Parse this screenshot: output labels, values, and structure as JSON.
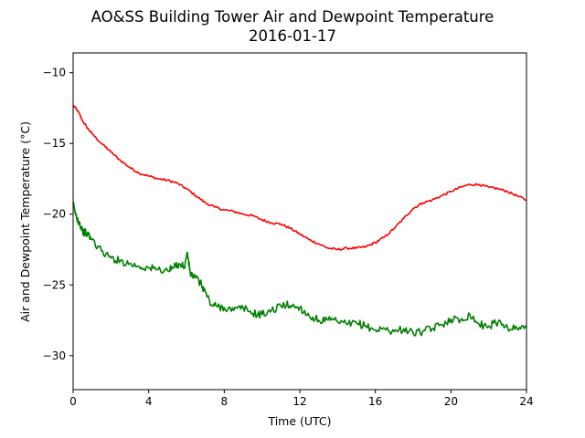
{
  "chart_data": {
    "type": "line",
    "title": "AO&SS Building Tower Air and Dewpoint Temperature",
    "subtitle": "2016-01-17",
    "xlabel": "Time (UTC)",
    "ylabel": "Air and Dewpoint Temperature (°C)",
    "xlim": [
      0,
      24
    ],
    "ylim": [
      -32.4,
      -8.6
    ],
    "xticks": [
      0,
      4,
      8,
      12,
      16,
      20,
      24
    ],
    "xtick_labels": [
      "0",
      "4",
      "8",
      "12",
      "16",
      "20",
      "24"
    ],
    "yticks": [
      -30,
      -25,
      -20,
      -15,
      -10
    ],
    "ytick_labels": [
      "−30",
      "−25",
      "−20",
      "−15",
      "−10"
    ],
    "grid": false,
    "legend": "none",
    "series": [
      {
        "color": "#ff0000",
        "x": [
          0,
          0.25,
          0.5,
          0.75,
          1,
          1.5,
          2,
          2.5,
          3,
          3.5,
          4,
          4.5,
          5,
          5.5,
          6,
          6.5,
          7,
          7.5,
          8,
          8.5,
          9,
          9.5,
          10,
          10.5,
          11,
          11.5,
          12,
          12.5,
          13,
          13.5,
          14,
          14.5,
          15,
          15.5,
          16,
          16.5,
          17,
          17.5,
          18,
          18.5,
          19,
          19.5,
          20,
          20.5,
          21,
          21.5,
          22,
          22.5,
          23,
          23.5,
          24
        ],
        "values": [
          -12.3,
          -12.7,
          -13.4,
          -13.9,
          -14.3,
          -15.0,
          -15.6,
          -16.2,
          -16.7,
          -17.1,
          -17.3,
          -17.5,
          -17.6,
          -17.8,
          -18.2,
          -18.7,
          -19.2,
          -19.5,
          -19.7,
          -19.8,
          -20.0,
          -20.1,
          -20.4,
          -20.6,
          -20.7,
          -21.0,
          -21.4,
          -21.8,
          -22.1,
          -22.4,
          -22.5,
          -22.4,
          -22.4,
          -22.3,
          -22.0,
          -21.6,
          -21.0,
          -20.3,
          -19.6,
          -19.2,
          -19.0,
          -18.7,
          -18.4,
          -18.1,
          -17.9,
          -17.9,
          -18.1,
          -18.2,
          -18.4,
          -18.7,
          -19.0
        ]
      },
      {
        "color": "#008000",
        "x": [
          0,
          0.15,
          0.3,
          0.5,
          0.75,
          1,
          1.5,
          2,
          2.5,
          3,
          3.5,
          4,
          4.5,
          5,
          5.3,
          5.6,
          5.9,
          6.05,
          6.2,
          6.5,
          6.8,
          7,
          7.3,
          7.6,
          8,
          8.5,
          9,
          9.5,
          10,
          10.5,
          11,
          11.3,
          11.6,
          12,
          12.5,
          13,
          13.5,
          14,
          14.5,
          15,
          15.5,
          16,
          16.5,
          17,
          17.5,
          18,
          18.5,
          19,
          19.5,
          20,
          20.5,
          21,
          21.5,
          22,
          22.5,
          23,
          23.5,
          24
        ],
        "values": [
          -19.3,
          -20.1,
          -20.5,
          -21.2,
          -21.4,
          -21.8,
          -22.6,
          -23.1,
          -23.3,
          -23.5,
          -23.7,
          -23.8,
          -23.9,
          -24.0,
          -23.8,
          -23.5,
          -23.7,
          -22.7,
          -24.2,
          -24.5,
          -25.0,
          -25.5,
          -26.4,
          -26.5,
          -26.6,
          -26.8,
          -26.6,
          -27.0,
          -27.1,
          -26.8,
          -26.5,
          -26.4,
          -26.5,
          -26.6,
          -27.2,
          -27.5,
          -27.5,
          -27.6,
          -27.8,
          -27.7,
          -27.9,
          -28.2,
          -28.1,
          -28.3,
          -28.1,
          -28.4,
          -28.3,
          -28.1,
          -27.8,
          -27.4,
          -27.5,
          -27.1,
          -27.8,
          -27.9,
          -27.6,
          -28.0,
          -28.1,
          -28.0
        ]
      }
    ]
  }
}
